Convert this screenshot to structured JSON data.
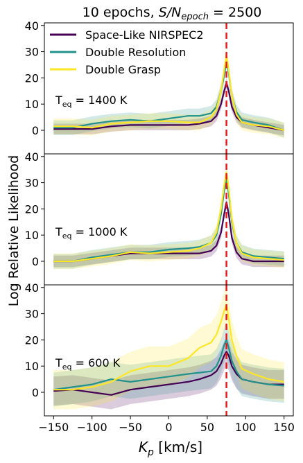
{
  "chart_data": {
    "type": "line",
    "title_prefix": "10 epochs, ",
    "title_math_main": "S/N",
    "title_math_sub": "epoch",
    "title_math_suffix": " = 2500",
    "ylabel": "Log Relative Likelihood",
    "xlabel_main": "K",
    "xlabel_sub": "p",
    "xlabel_unit": " [km/s]",
    "xlim": [
      -162,
      162
    ],
    "ylim": [
      -9,
      41
    ],
    "xticks": [
      -150,
      -100,
      -50,
      0,
      50,
      100,
      150
    ],
    "xtick_labels": [
      "−150",
      "−100",
      "−50",
      "0",
      "50",
      "100",
      "150"
    ],
    "yticks": [
      0,
      10,
      20,
      30,
      40
    ],
    "ytick_labels": [
      "0",
      "10",
      "20",
      "30",
      "40"
    ],
    "vline_x": 75,
    "vline_color": "#e41a1c",
    "legend_location": "upper-left (top panel)",
    "legend": [
      {
        "label": "Space-Like NIRSPEC2",
        "color": "#440154"
      },
      {
        "label": "Double Resolution",
        "color": "#21918c"
      },
      {
        "label": "Double Grasp",
        "color": "#fde725"
      }
    ],
    "x": [
      -150,
      -125,
      -100,
      -75,
      -50,
      -25,
      0,
      25,
      40,
      55,
      62,
      68,
      72,
      75,
      78,
      82,
      88,
      95,
      110,
      130,
      150
    ],
    "panels": [
      {
        "label_main": "T",
        "label_sub": "eq",
        "label_suffix": " = 1400 K",
        "series": [
          {
            "name": "Space-Like NIRSPEC2",
            "values": [
              0.5,
              0.5,
              0.5,
              1.5,
              2,
              2,
              2,
              2,
              2.5,
              3.5,
              5.5,
              10,
              15,
              18,
              15,
              9,
              5,
              3,
              2,
              1,
              0
            ],
            "band": 2
          },
          {
            "name": "Double Resolution",
            "values": [
              1,
              1,
              2.5,
              3.5,
              4,
              3.5,
              4.5,
              5.5,
              5.5,
              6.5,
              9,
              15,
              21,
              26.5,
              22,
              13,
              7,
              4,
              3,
              2,
              0
            ],
            "band": 2.8
          },
          {
            "name": "Double Grasp",
            "values": [
              1.5,
              1.5,
              1,
              2.5,
              3,
              3.5,
              3.5,
              3,
              3,
              5,
              8,
              15,
              23,
              28.5,
              23,
              13,
              6,
              3,
              2,
              1.5,
              0
            ],
            "band": 3
          }
        ]
      },
      {
        "label_main": "T",
        "label_sub": "eq",
        "label_suffix": " = 1000 K",
        "series": [
          {
            "name": "Space-Like NIRSPEC2",
            "values": [
              0,
              0,
              1,
              2,
              3,
              3,
              3,
              3,
              3,
              4,
              6,
              11,
              18,
              22.5,
              18,
              9,
              3.5,
              1,
              0,
              0,
              0
            ],
            "band": 2.2
          },
          {
            "name": "Double Resolution",
            "values": [
              0,
              0,
              1.5,
              2.5,
              3.5,
              3.5,
              4.5,
              5,
              5.5,
              7,
              10,
              18,
              27,
              31.5,
              26,
              15,
              7,
              3.5,
              2,
              1.5,
              1
            ],
            "band": 2.8
          },
          {
            "name": "Double Grasp",
            "values": [
              0,
              0,
              1,
              2,
              3.5,
              3,
              3.5,
              4,
              5,
              7,
              11,
              20,
              29,
              34,
              28,
              16,
              7,
              3,
              1.5,
              1,
              0.5
            ],
            "band": 3
          }
        ]
      },
      {
        "label_main": "T",
        "label_sub": "eq",
        "label_suffix": " = 600 K",
        "series": [
          {
            "name": "Space-Like NIRSPEC2",
            "values": [
              0.5,
              1,
              0,
              -1,
              1,
              2,
              3,
              4,
              5,
              6.5,
              8,
              11,
              14,
              15.5,
              14,
              10,
              7,
              5,
              4,
              3,
              3
            ],
            "band": 5.5
          },
          {
            "name": "Double Resolution",
            "values": [
              1,
              2,
              3,
              5,
              4,
              5,
              6,
              7,
              7.5,
              8,
              10,
              14,
              18,
              20,
              17,
              12,
              8,
              5,
              4,
              3,
              2.5
            ],
            "band": 6.5
          },
          {
            "name": "Double Grasp",
            "values": [
              1,
              1,
              2,
              4,
              8,
              10,
              10,
              13,
              17,
              19,
              22,
              27,
              31,
              33.5,
              28,
              20,
              14,
              9,
              7,
              5,
              4
            ],
            "band": 7.5
          }
        ]
      }
    ]
  }
}
